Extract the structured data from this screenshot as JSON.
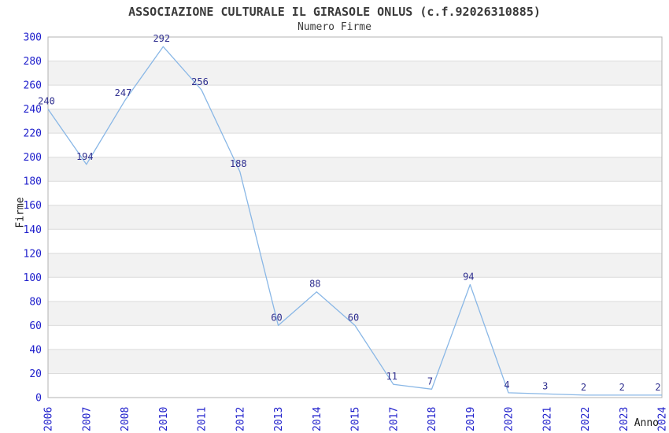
{
  "chart_data": {
    "type": "line",
    "title": "ASSOCIAZIONE CULTURALE IL GIRASOLE ONLUS (c.f.92026310885)",
    "subtitle": "Numero Firme",
    "xlabel": "Anno",
    "ylabel": "Firme",
    "categories": [
      "2006",
      "2007",
      "2008",
      "2010",
      "2011",
      "2012",
      "2013",
      "2014",
      "2015",
      "2017",
      "2018",
      "2019",
      "2020",
      "2021",
      "2022",
      "2023",
      "2024"
    ],
    "values": [
      240,
      194,
      247,
      292,
      256,
      188,
      60,
      88,
      60,
      11,
      7,
      94,
      4,
      3,
      2,
      2,
      2
    ],
    "ylim": [
      0,
      300
    ],
    "ytick_step": 20,
    "grid": true,
    "legend": "none",
    "band_fill": "alternating",
    "colors": {
      "line": "#89b7e6",
      "data_label": "#2e2e8f",
      "tick_label": "#2020cc",
      "band": "#f2f2f2",
      "grid": "#dcdcdc",
      "border": "#b3b3b3",
      "title": "#3a3a3a",
      "axis_title": "#1a1a1a"
    }
  }
}
